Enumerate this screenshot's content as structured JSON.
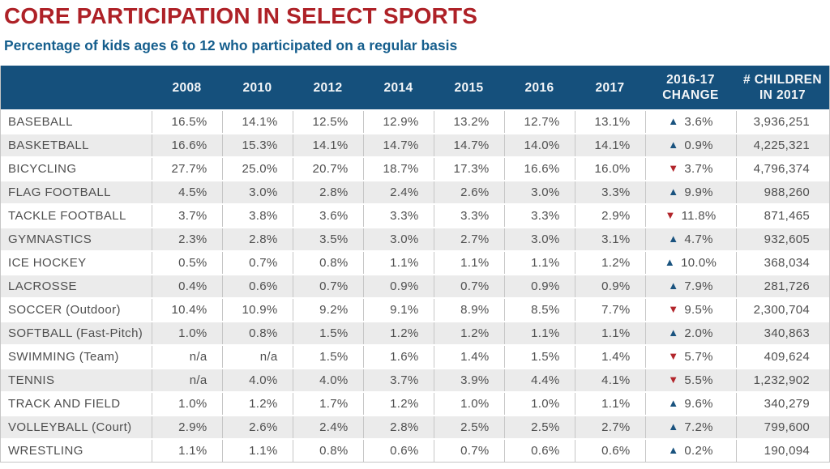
{
  "page": {
    "title": "CORE PARTICIPATION IN SELECT SPORTS",
    "subtitle": "Percentage of kids ages 6 to 12 who participated on a regular basis"
  },
  "colors": {
    "title_red": "#ae2127",
    "subtitle_blue": "#155e8d",
    "header_bg": "#15507c",
    "up_triangle": "#1a537f",
    "down_triangle": "#b2252b",
    "row_stripe": "#ebebeb",
    "cell_text": "#4f4f4f"
  },
  "icons": {
    "up": "▲",
    "down": "▼"
  },
  "chart_data": {
    "type": "table",
    "title": "CORE PARTICIPATION IN SELECT SPORTS",
    "subtitle": "Percentage of kids ages 6 to 12 who participated on a regular basis",
    "columns": [
      "",
      "2008",
      "2010",
      "2012",
      "2014",
      "2015",
      "2016",
      "2017",
      "2016-17\nCHANGE",
      "# CHILDREN\nIN 2017"
    ],
    "rows": [
      {
        "sport": "BASEBALL",
        "values": [
          "16.5%",
          "14.1%",
          "12.5%",
          "12.9%",
          "13.2%",
          "12.7%",
          "13.1%"
        ],
        "change": {
          "direction": "up",
          "value": "3.6%"
        },
        "children": "3,936,251"
      },
      {
        "sport": "BASKETBALL",
        "values": [
          "16.6%",
          "15.3%",
          "14.1%",
          "14.7%",
          "14.7%",
          "14.0%",
          "14.1%"
        ],
        "change": {
          "direction": "up",
          "value": "0.9%"
        },
        "children": "4,225,321"
      },
      {
        "sport": "BICYCLING",
        "values": [
          "27.7%",
          "25.0%",
          "20.7%",
          "18.7%",
          "17.3%",
          "16.6%",
          "16.0%"
        ],
        "change": {
          "direction": "down",
          "value": "3.7%"
        },
        "children": "4,796,374"
      },
      {
        "sport": "FLAG FOOTBALL",
        "values": [
          "4.5%",
          "3.0%",
          "2.8%",
          "2.4%",
          "2.6%",
          "3.0%",
          "3.3%"
        ],
        "change": {
          "direction": "up",
          "value": "9.9%"
        },
        "children": "988,260"
      },
      {
        "sport": "TACKLE FOOTBALL",
        "values": [
          "3.7%",
          "3.8%",
          "3.6%",
          "3.3%",
          "3.3%",
          "3.3%",
          "2.9%"
        ],
        "change": {
          "direction": "down",
          "value": "11.8%"
        },
        "children": "871,465"
      },
      {
        "sport": "GYMNASTICS",
        "values": [
          "2.3%",
          "2.8%",
          "3.5%",
          "3.0%",
          "2.7%",
          "3.0%",
          "3.1%"
        ],
        "change": {
          "direction": "up",
          "value": "4.7%"
        },
        "children": "932,605"
      },
      {
        "sport": "ICE HOCKEY",
        "values": [
          "0.5%",
          "0.7%",
          "0.8%",
          "1.1%",
          "1.1%",
          "1.1%",
          "1.2%"
        ],
        "change": {
          "direction": "up",
          "value": "10.0%"
        },
        "children": "368,034"
      },
      {
        "sport": "LACROSSE",
        "values": [
          "0.4%",
          "0.6%",
          "0.7%",
          "0.9%",
          "0.7%",
          "0.9%",
          "0.9%"
        ],
        "change": {
          "direction": "up",
          "value": "7.9%"
        },
        "children": "281,726"
      },
      {
        "sport": "SOCCER (Outdoor)",
        "values": [
          "10.4%",
          "10.9%",
          "9.2%",
          "9.1%",
          "8.9%",
          "8.5%",
          "7.7%"
        ],
        "change": {
          "direction": "down",
          "value": "9.5%"
        },
        "children": "2,300,704"
      },
      {
        "sport": "SOFTBALL (Fast-Pitch)",
        "values": [
          "1.0%",
          "0.8%",
          "1.5%",
          "1.2%",
          "1.2%",
          "1.1%",
          "1.1%"
        ],
        "change": {
          "direction": "up",
          "value": "2.0%"
        },
        "children": "340,863"
      },
      {
        "sport": "SWIMMING (Team)",
        "values": [
          "n/a",
          "n/a",
          "1.5%",
          "1.6%",
          "1.4%",
          "1.5%",
          "1.4%"
        ],
        "change": {
          "direction": "down",
          "value": "5.7%"
        },
        "children": "409,624"
      },
      {
        "sport": "TENNIS",
        "values": [
          "n/a",
          "4.0%",
          "4.0%",
          "3.7%",
          "3.9%",
          "4.4%",
          "4.1%"
        ],
        "change": {
          "direction": "down",
          "value": "5.5%"
        },
        "children": "1,232,902"
      },
      {
        "sport": "TRACK AND FIELD",
        "values": [
          "1.0%",
          "1.2%",
          "1.7%",
          "1.2%",
          "1.0%",
          "1.0%",
          "1.1%"
        ],
        "change": {
          "direction": "up",
          "value": "9.6%"
        },
        "children": "340,279"
      },
      {
        "sport": "VOLLEYBALL (Court)",
        "values": [
          "2.9%",
          "2.6%",
          "2.4%",
          "2.8%",
          "2.5%",
          "2.5%",
          "2.7%"
        ],
        "change": {
          "direction": "up",
          "value": "7.2%"
        },
        "children": "799,600"
      },
      {
        "sport": "WRESTLING",
        "values": [
          "1.1%",
          "1.1%",
          "0.8%",
          "0.6%",
          "0.7%",
          "0.6%",
          "0.6%"
        ],
        "change": {
          "direction": "up",
          "value": "0.2%"
        },
        "children": "190,094"
      }
    ]
  }
}
